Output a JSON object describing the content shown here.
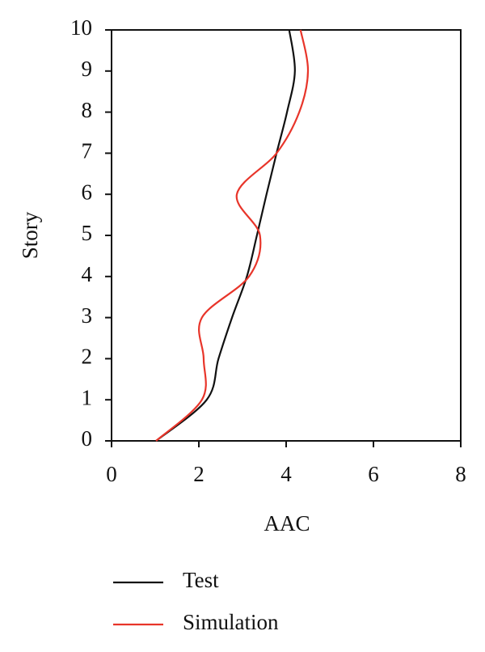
{
  "chart_data": {
    "type": "line",
    "orientation": "horizontal",
    "x_label": "AAC",
    "y_label": "Story",
    "x": [
      0,
      1,
      2,
      3,
      4,
      5,
      6,
      7,
      8,
      9,
      10
    ],
    "series": [
      {
        "name": "Test",
        "color": "#111111",
        "values": [
          1.02,
          2.18,
          2.45,
          2.76,
          3.1,
          3.33,
          3.55,
          3.78,
          4.02,
          4.2,
          4.07
        ]
      },
      {
        "name": "Simulation",
        "color": "#e8352a",
        "values": [
          1.02,
          2.07,
          2.11,
          2.07,
          3.15,
          3.4,
          2.87,
          3.78,
          4.3,
          4.5,
          4.33
        ]
      }
    ],
    "xlim": [
      0,
      8
    ],
    "xticks": [
      0,
      2,
      4,
      6,
      8
    ],
    "ylim": [
      0,
      10
    ],
    "yticks": [
      0,
      1,
      2,
      3,
      4,
      5,
      6,
      7,
      8,
      9,
      10
    ],
    "legend": "bottom"
  }
}
